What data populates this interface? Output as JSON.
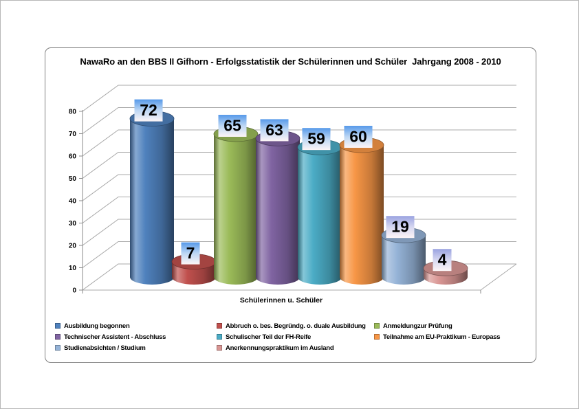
{
  "page": {
    "background": "#ffffff"
  },
  "chart": {
    "title": "NawaRo an den BBS II Gifhorn - Erfolgsstatistik der Schülerinnen und Schüler  Jahrgang 2008 - 2010",
    "x_axis_title": "Schülerinnen u. Schüler",
    "frame_border_color": "#7f7f7f",
    "gridline_color": "#a8a8a8",
    "axis_color": "#8a8a8a",
    "label_text_color": "#000000"
  },
  "chart_data": {
    "type": "bar",
    "subtype": "3d-cylinder",
    "title": "NawaRo an den BBS II Gifhorn - Erfolgsstatistik der Schülerinnen und Schüler  Jahrgang 2008 - 2010",
    "xlabel": "Schülerinnen u. Schüler",
    "ylabel": "",
    "categories": [
      "Schülerinnen u. Schüler"
    ],
    "series": [
      {
        "name": "Ausbildung begonnen",
        "value": 72,
        "color": "#4F81BD",
        "label_style": "blue"
      },
      {
        "name": "Abbruch o. bes. Begründg. o. duale Ausbildung",
        "value": 7,
        "color": "#C0504D",
        "label_style": "blue"
      },
      {
        "name": "Anmeldungzur Prüfung",
        "value": 65,
        "color": "#9BBB59",
        "label_style": "blue"
      },
      {
        "name": "Technischer Assistent - Abschluss",
        "value": 63,
        "color": "#8064A2",
        "label_style": "blue"
      },
      {
        "name": "Schulischer Teil der FH-Reife",
        "value": 59,
        "color": "#4BACC6",
        "label_style": "blue"
      },
      {
        "name": "Teilnahme am EU-Praktikum - Europass",
        "value": 60,
        "color": "#F79646",
        "label_style": "blue"
      },
      {
        "name": "Studienabsichten / Studium",
        "value": 19,
        "color": "#95B3D7",
        "label_style": "lavender"
      },
      {
        "name": "Anerkennungspraktikum im Ausland",
        "value": 4,
        "color": "#D99694",
        "label_style": "lavender"
      }
    ],
    "y_axis": {
      "min": 0,
      "max": 80,
      "step": 10
    },
    "ylim": [
      0,
      80
    ],
    "grid": true,
    "data_labels": true,
    "legend_position": "bottom"
  }
}
